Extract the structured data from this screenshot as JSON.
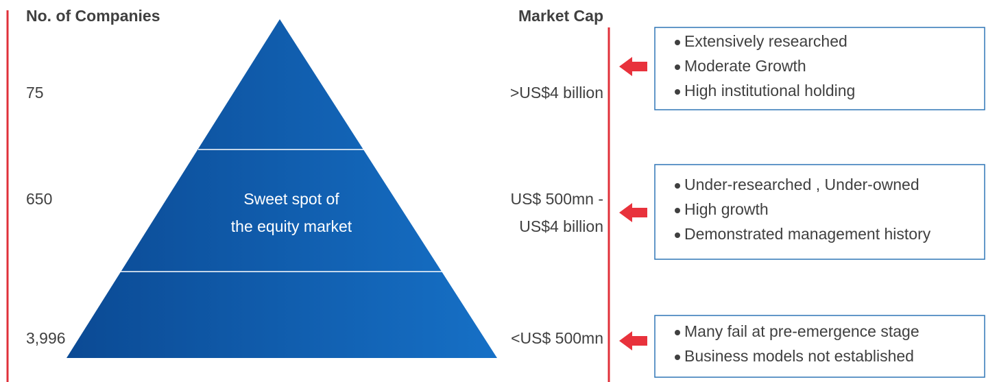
{
  "header": {
    "left": "No. of Companies",
    "right": "Market Cap"
  },
  "pyramid_label": [
    "Sweet spot of",
    "the equity market"
  ],
  "tiers": [
    {
      "count": "75",
      "market_cap": [
        ">US$4 billion"
      ],
      "bullets": [
        "Extensively researched",
        "Moderate Growth",
        "High institutional holding"
      ]
    },
    {
      "count": "650",
      "market_cap": [
        "US$ 500mn -",
        "US$4 billion"
      ],
      "bullets": [
        "Under-researched , Under-owned",
        "High growth",
        "Demonstrated  management history"
      ]
    },
    {
      "count": "3,996",
      "market_cap": [
        "<US$ 500mn"
      ],
      "bullets": [
        "Many fail at pre-emergence stage",
        "Business models not established"
      ]
    }
  ]
}
